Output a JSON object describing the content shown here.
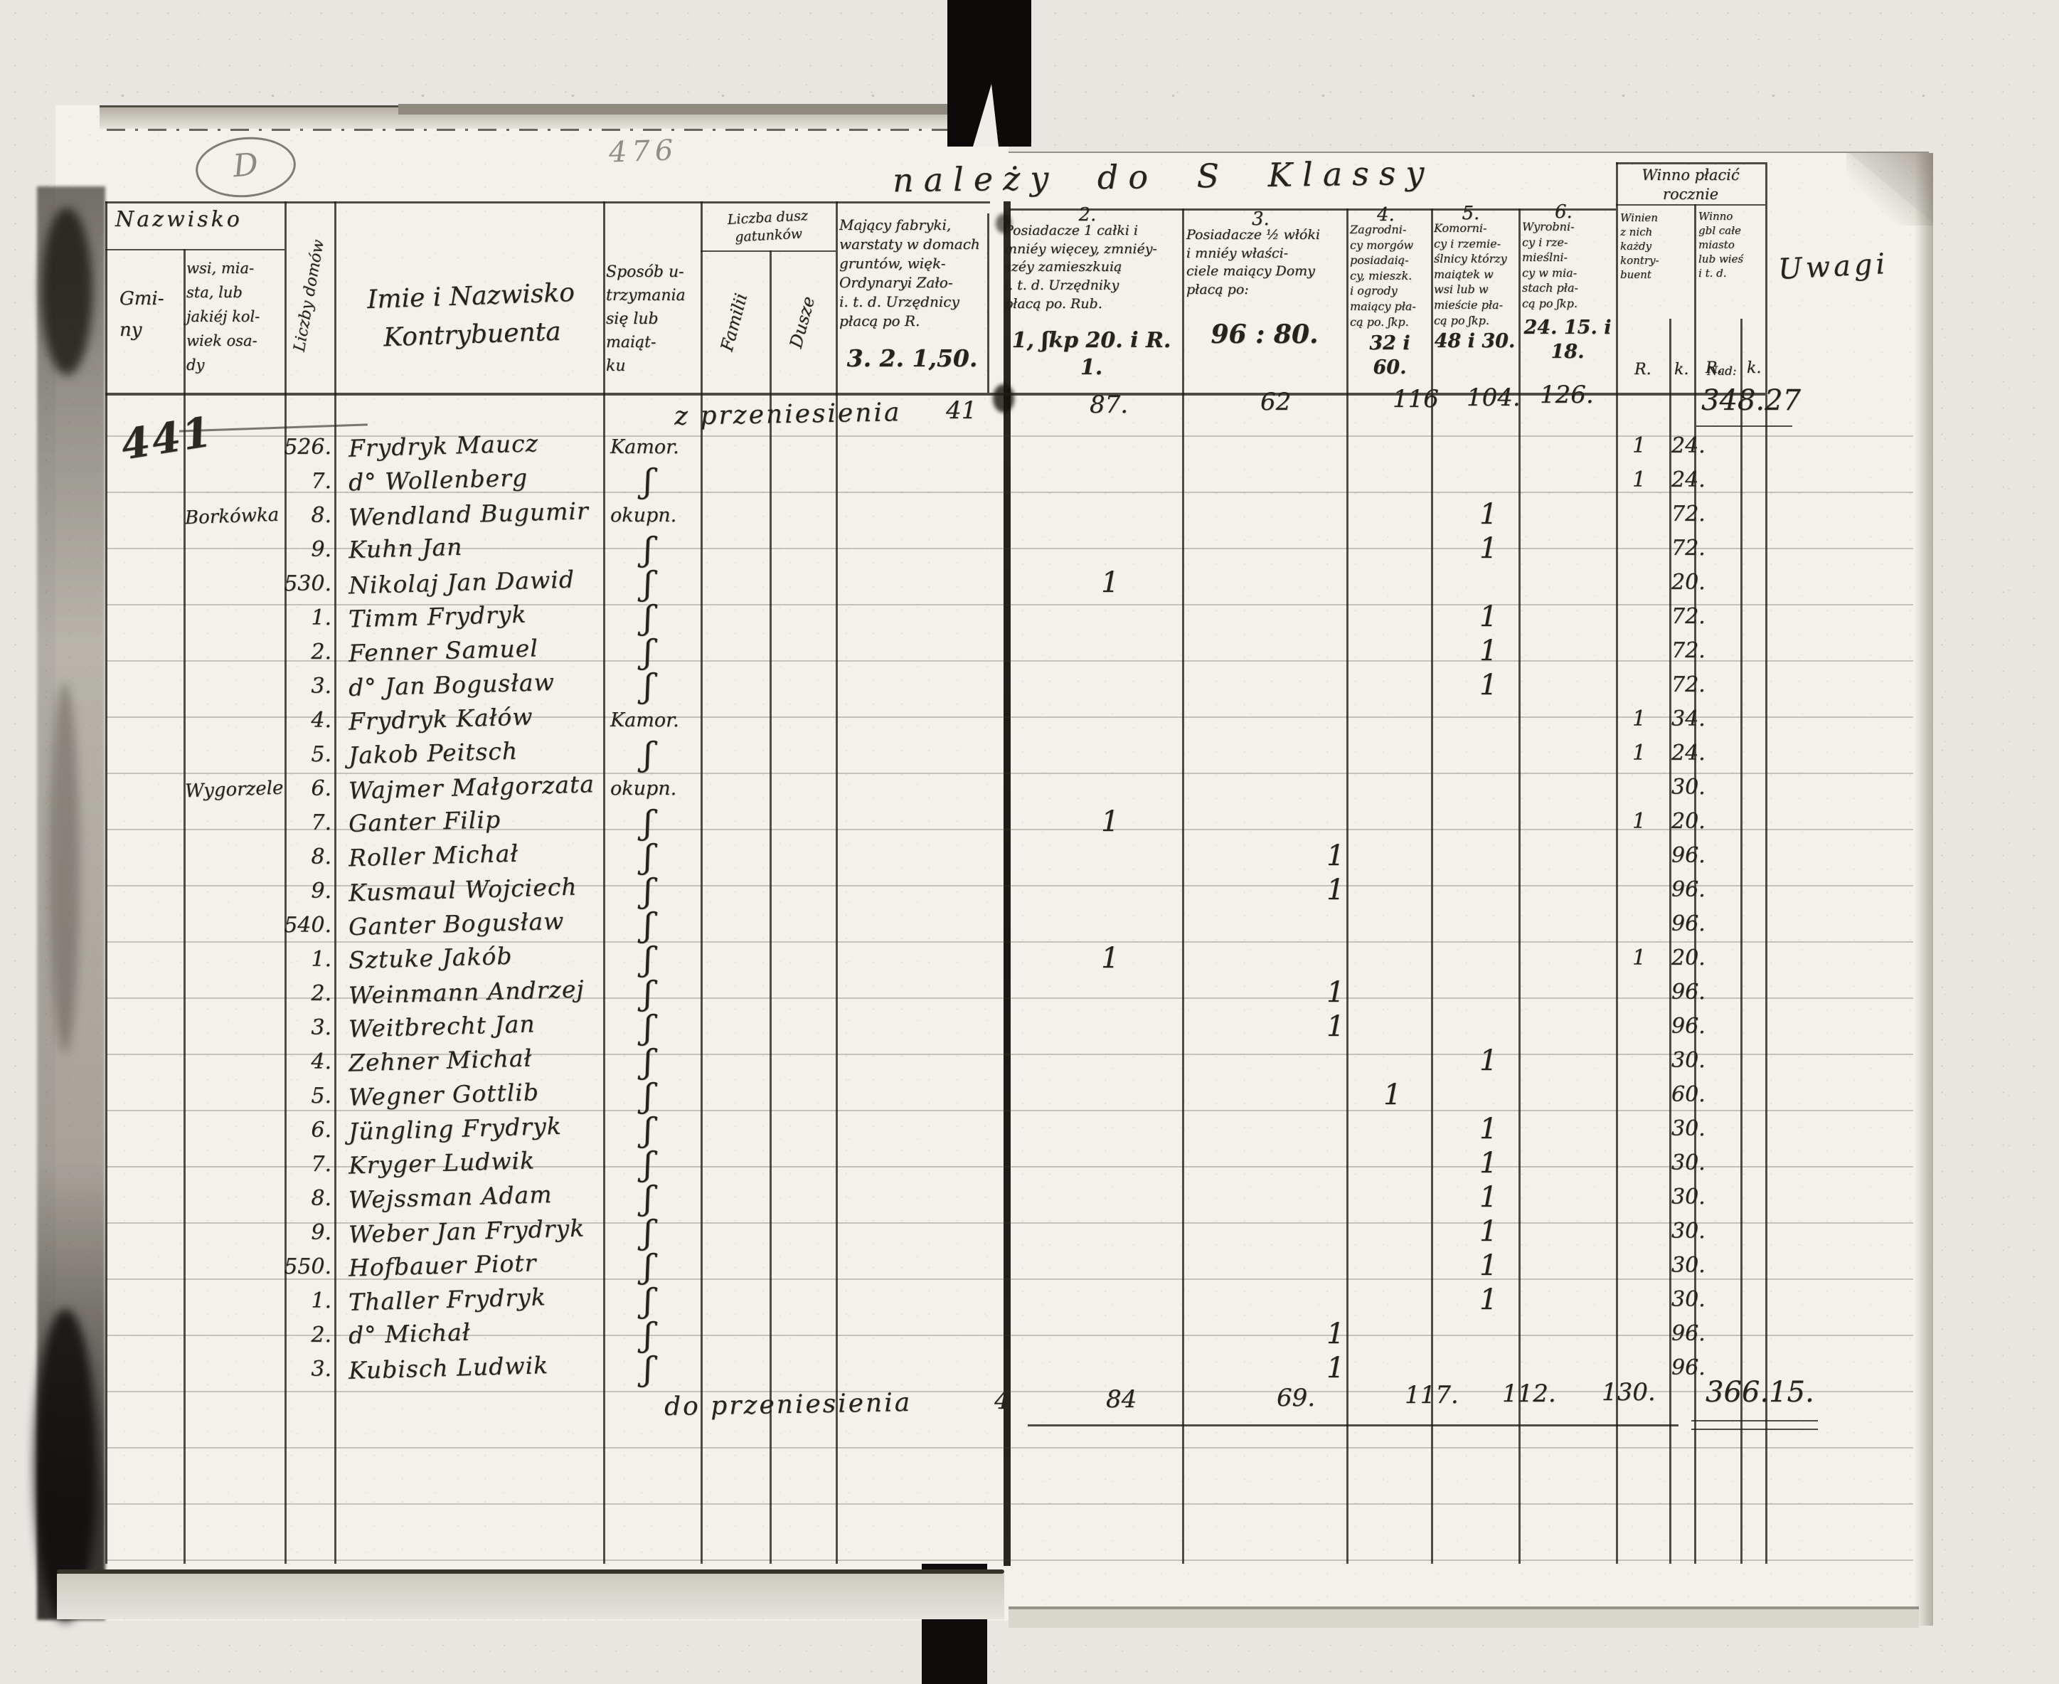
{
  "document": {
    "marks": {
      "page_number_pencil": "441",
      "faint_number": "476",
      "oval_mark": "D",
      "title_script": "należy do S Klassy"
    },
    "header": {
      "nazwisko": "Nazwisko",
      "gminy": "Gmi-\nny",
      "wsi": "wsi, mia-\nsta, lub\njakiéj kol-\nwiek osa-\ndy",
      "liczby_domow": "Liczby domów",
      "imie": "Imie i Nazwisko\nKontrybuenta",
      "sposob": "Sposób u-\ntrzymania\nsię lub\nmaiąt-\nku",
      "liczba_dusz": "Liczba dusz\ngatunków",
      "familii": "Familii",
      "dusze": "Dusze",
      "cols": [
        {
          "num": "",
          "text": "Mający fabryki,\nwarstaty w domach\ngruntów, więk-\nOrdynaryi Zało-\ni. t. d. Urzędnicy\npłacą po R.",
          "rate": "3. 2. 1,50."
        },
        {
          "num": "2.",
          "text": "Posiadacze 1 całki i\nmniéy więcey, zmniéy-\nszéy zamieszkuią\ni. t. d. Urzędniky\npłacą po. Rub.",
          "rate": "1, ʃkp 20. i R. 1."
        },
        {
          "num": "3.",
          "text": "Posiadacze ½ włóki\ni mniéy właści-\nciele maiący Domy\npłacą po:",
          "rate": "96 : 80."
        },
        {
          "num": "4.",
          "text": "Zagrodni-\ncy morgów\nposiadaią-\ncy, mieszk.\ni ogrody\nmaiący pła-\ncą po. ʃkp.",
          "rate": "32 i 60."
        },
        {
          "num": "5.",
          "text": "Komorni-\ncy i rzemie-\nślnicy którzy\nmaiątek w\nwsi lub w\nmieście pła-\ncą po ʃkp.",
          "rate": "48 i 30."
        },
        {
          "num": "6.",
          "text": "Wyrobni-\ncy i rze-\nmieślni-\ncy w mia-\nstach pła-\ncą po ʃkp.",
          "rate": "24. 15. i\n18."
        }
      ],
      "winno": {
        "title": "Winno płacić\nrocznie",
        "sub1": "Winien\nz nich\nkażdy\nkontry-\nbuent",
        "sub2": "Winno\ngbl całe\nmiasto\nlub wieś\ni t. d.",
        "rs1": "R.",
        "k1": "k.",
        "rs2": "R.",
        "k2": "k.",
        "uwagi": "Uwagi"
      }
    },
    "summary_top": {
      "label": "z przeniesienia",
      "c1": "41",
      "c2": "87.",
      "c3": "62",
      "c4": "116",
      "c5": "104.",
      "c6": "126.",
      "nad": "Nad:",
      "total": "348.27"
    },
    "rows": [
      {
        "wsi": "",
        "nr": "526.",
        "name": "Frydryk Maucz",
        "sposob": "Kamor.",
        "mark": "",
        "rs": "1",
        "k": "24."
      },
      {
        "wsi": "",
        "nr": "7.",
        "name": "d° Wollenberg",
        "sposob": "ʃ",
        "mark": "",
        "rs": "1",
        "k": "24."
      },
      {
        "wsi": "Borkówka",
        "nr": "8.",
        "name": "Wendland Bugumir",
        "sposob": "okupn.",
        "mark": "c5",
        "rs": "",
        "k": "72."
      },
      {
        "wsi": "",
        "nr": "9.",
        "name": "Kuhn Jan",
        "sposob": "ʃ",
        "mark": "c5",
        "rs": "",
        "k": "72."
      },
      {
        "wsi": "",
        "nr": "530.",
        "name": "Nikolaj Jan Dawid",
        "sposob": "ʃ",
        "mark": "c2",
        "rs": "",
        "k": "20."
      },
      {
        "wsi": "",
        "nr": "1.",
        "name": "Timm Frydryk",
        "sposob": "ʃ",
        "mark": "c5",
        "rs": "",
        "k": "72."
      },
      {
        "wsi": "",
        "nr": "2.",
        "name": "Fenner Samuel",
        "sposob": "ʃ",
        "mark": "c5",
        "rs": "",
        "k": "72."
      },
      {
        "wsi": "",
        "nr": "3.",
        "name": "d° Jan Bogusław",
        "sposob": "ʃ",
        "mark": "c5",
        "rs": "",
        "k": "72."
      },
      {
        "wsi": "",
        "nr": "4.",
        "name": "Frydryk Kałów",
        "sposob": "Kamor.",
        "mark": "",
        "rs": "1",
        "k": "34."
      },
      {
        "wsi": "",
        "nr": "5.",
        "name": "Jakob Peitsch",
        "sposob": "ʃ",
        "mark": "",
        "rs": "1",
        "k": "24."
      },
      {
        "wsi": "Wygorzele",
        "nr": "6.",
        "name": "Wajmer Małgorzata",
        "sposob": "okupn.",
        "mark": "",
        "rs": "",
        "k": "30."
      },
      {
        "wsi": "",
        "nr": "7.",
        "name": "Ganter Filip",
        "sposob": "ʃ",
        "mark": "c2",
        "rs": "1",
        "k": "20."
      },
      {
        "wsi": "",
        "nr": "8.",
        "name": "Roller Michał",
        "sposob": "ʃ",
        "mark": "c3",
        "rs": "",
        "k": "96."
      },
      {
        "wsi": "",
        "nr": "9.",
        "name": "Kusmaul Wojciech",
        "sposob": "ʃ",
        "mark": "c3",
        "rs": "",
        "k": "96."
      },
      {
        "wsi": "",
        "nr": "540.",
        "name": "Ganter Bogusław",
        "sposob": "ʃ",
        "mark": "",
        "rs": "",
        "k": "96."
      },
      {
        "wsi": "",
        "nr": "1.",
        "name": "Sztuke Jakób",
        "sposob": "ʃ",
        "mark": "c2",
        "rs": "1",
        "k": "20."
      },
      {
        "wsi": "",
        "nr": "2.",
        "name": "Weinmann Andrzej",
        "sposob": "ʃ",
        "mark": "c3",
        "rs": "",
        "k": "96."
      },
      {
        "wsi": "",
        "nr": "3.",
        "name": "Weitbrecht Jan",
        "sposob": "ʃ",
        "mark": "c3",
        "rs": "",
        "k": "96."
      },
      {
        "wsi": "",
        "nr": "4.",
        "name": "Zehner Michał",
        "sposob": "ʃ",
        "mark": "c5",
        "rs": "",
        "k": "30."
      },
      {
        "wsi": "",
        "nr": "5.",
        "name": "Wegner Gottlib",
        "sposob": "ʃ",
        "mark": "c4",
        "rs": "",
        "k": "60."
      },
      {
        "wsi": "",
        "nr": "6.",
        "name": "Jüngling Frydryk",
        "sposob": "ʃ",
        "mark": "c5",
        "rs": "",
        "k": "30."
      },
      {
        "wsi": "",
        "nr": "7.",
        "name": "Kryger Ludwik",
        "sposob": "ʃ",
        "mark": "c5",
        "rs": "",
        "k": "30."
      },
      {
        "wsi": "",
        "nr": "8.",
        "name": "Wejssman Adam",
        "sposob": "ʃ",
        "mark": "c5",
        "rs": "",
        "k": "30."
      },
      {
        "wsi": "",
        "nr": "9.",
        "name": "Weber Jan Frydryk",
        "sposob": "ʃ",
        "mark": "c5",
        "rs": "",
        "k": "30."
      },
      {
        "wsi": "",
        "nr": "550.",
        "name": "Hofbauer Piotr",
        "sposob": "ʃ",
        "mark": "c5",
        "rs": "",
        "k": "30."
      },
      {
        "wsi": "",
        "nr": "1.",
        "name": "Thaller Frydryk",
        "sposob": "ʃ",
        "mark": "c5",
        "rs": "",
        "k": "30."
      },
      {
        "wsi": "",
        "nr": "2.",
        "name": "d° Michał",
        "sposob": "ʃ",
        "mark": "c3",
        "rs": "",
        "k": "96."
      },
      {
        "wsi": "",
        "nr": "3.",
        "name": "Kubisch Ludwik",
        "sposob": "ʃ",
        "mark": "c3",
        "rs": "",
        "k": "96."
      }
    ],
    "summary_bottom": {
      "label": "do przeniesienia",
      "c1": "4",
      "c2": "84",
      "c3": "69.",
      "c4": "117.",
      "c5": "112.",
      "c6": "130.",
      "total": "366.15."
    }
  }
}
